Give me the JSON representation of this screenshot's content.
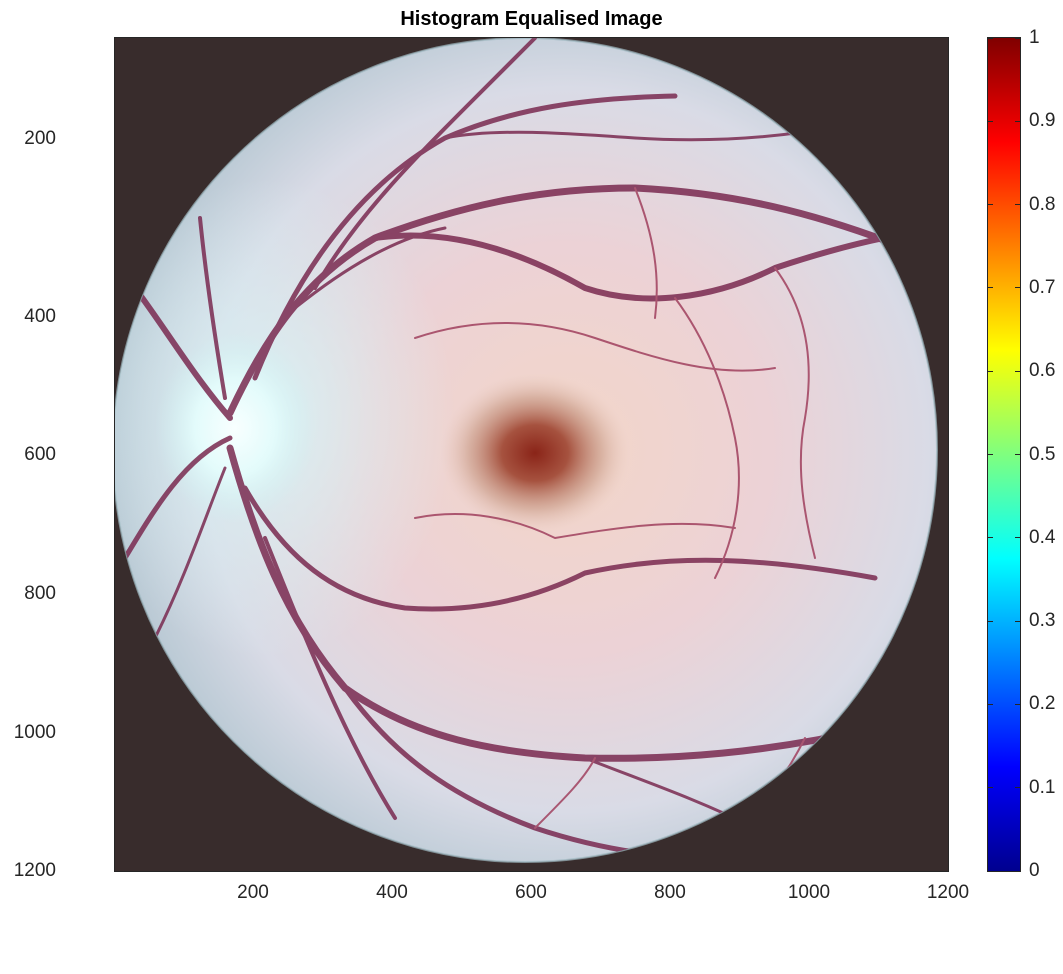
{
  "figure": {
    "title": "Histogram Equalised Image"
  },
  "axes": {
    "x_ticks": [
      "200",
      "400",
      "600",
      "800",
      "1000",
      "1200"
    ],
    "y_ticks": [
      "200",
      "400",
      "600",
      "800",
      "1000",
      "1200"
    ],
    "background": "#382c2c"
  },
  "image": {
    "subject": "retina-fundus",
    "fovea_color": "#7a2a1e",
    "optic_disc_color": "#eaffff",
    "vessel_color": "#7a2a50"
  },
  "colorbar": {
    "colormap": "jet",
    "ticks": [
      "0",
      "0.1",
      "0.2",
      "0.3",
      "0.4",
      "0.5",
      "0.6",
      "0.7",
      "0.8",
      "0.9",
      "1"
    ]
  }
}
